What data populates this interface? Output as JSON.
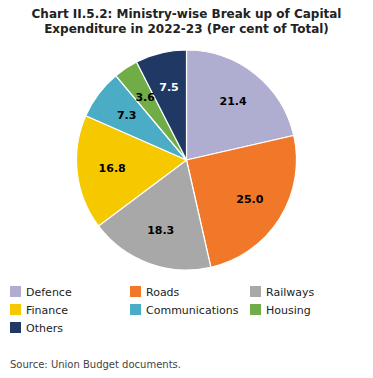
{
  "chart_data": {
    "type": "pie",
    "title": "Chart II.5.2: Ministry-wise Break up of Capital\nExpenditure in 2022-23 (Per cent of Total)",
    "categories": [
      "Defence",
      "Roads",
      "Railways",
      "Finance",
      "Communications",
      "Housing",
      "Others"
    ],
    "values": [
      21.4,
      25.0,
      18.3,
      16.8,
      7.3,
      3.6,
      7.5
    ],
    "value_labels": [
      "21.4",
      "25.0",
      "18.3",
      "16.8",
      "7.3",
      "3.6",
      "7.5"
    ],
    "colors": [
      "#b0aed0",
      "#f07828",
      "#a8a8a8",
      "#f5c800",
      "#4bacc6",
      "#70ad47",
      "#1f3864"
    ],
    "data_labels": true,
    "legend": "bottom",
    "annotations": [
      "Source: Union Budget documents."
    ]
  }
}
